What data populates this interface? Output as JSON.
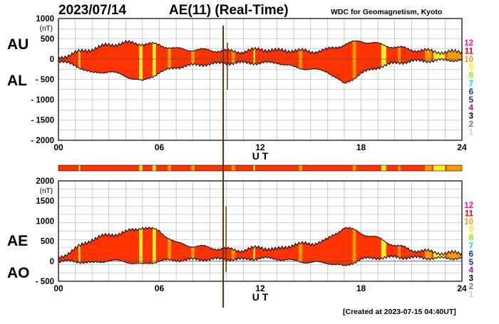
{
  "header": {
    "date": "2023/07/14",
    "title": "AE(11) (Real-Time)",
    "credit": "WDC for Geomagnetism, Kyoto"
  },
  "side_labels": {
    "au": "AU",
    "al": "AL",
    "ae": "AE",
    "ao": "AO"
  },
  "footer": {
    "created": "[Created at 2023-07-15 04:40UT]"
  },
  "legend": {
    "numbers": [
      "12",
      "11",
      "10",
      "9",
      "8",
      "7",
      "6",
      "5",
      "4",
      "3",
      "2",
      "1"
    ],
    "colors": [
      "#ff1493",
      "#ee0000",
      "#ff9900",
      "#ffee00",
      "#99ee00",
      "#00dddd",
      "#0033ff",
      "#2222aa",
      "#cc00cc",
      "#000000",
      "#777777",
      "#cccccc"
    ]
  },
  "colors": {
    "fill": "#ff3300",
    "fill_alt_orange": "#ff9900",
    "fill_alt_yellow": "#ffee22",
    "outline": "#000000",
    "spike": "#553300",
    "grid": "#aaaaaa"
  },
  "chart_data": [
    {
      "type": "area",
      "name": "AU and AL",
      "unit": "(nT)",
      "xlim": [
        0,
        24
      ],
      "ylim": [
        -2000,
        1000
      ],
      "yticks": [
        1000,
        500,
        0,
        -500,
        -1000,
        -1500,
        -2000
      ],
      "ytick_labels": [
        "1000",
        "500",
        "0",
        "- 500",
        "- 1000",
        "- 1500",
        "- 2000"
      ],
      "xticks": [
        0,
        6,
        12,
        18,
        24
      ],
      "xtick_labels": [
        "00",
        "06",
        "12",
        "18",
        "24"
      ],
      "xlabel": "U T",
      "series": [
        {
          "name": "AU",
          "x": [
            0,
            1,
            2,
            3,
            4,
            5,
            6,
            7,
            8,
            9,
            9.8,
            11,
            12,
            13,
            14,
            15,
            16,
            17,
            18,
            19,
            20,
            21,
            22,
            23,
            24
          ],
          "values": [
            30,
            150,
            250,
            350,
            400,
            380,
            350,
            250,
            230,
            220,
            200,
            180,
            250,
            200,
            220,
            180,
            230,
            360,
            450,
            370,
            300,
            230,
            200,
            170,
            180
          ]
        },
        {
          "name": "AL",
          "x": [
            0,
            1,
            2,
            3,
            4,
            5,
            6,
            7,
            8,
            9,
            9.8,
            11,
            12,
            13,
            14,
            15,
            16,
            17,
            18,
            19,
            20,
            21,
            22,
            23,
            24
          ],
          "values": [
            -50,
            -150,
            -350,
            -300,
            -420,
            -550,
            -330,
            -200,
            -150,
            -120,
            -100,
            -90,
            -100,
            -80,
            -200,
            -250,
            -300,
            -620,
            -350,
            -200,
            -100,
            -50,
            -40,
            -30,
            -20
          ]
        }
      ],
      "spike": {
        "x": 9.8,
        "high": 950,
        "low": -2000
      }
    },
    {
      "type": "area",
      "name": "AE and AO",
      "unit": "(nT)",
      "xlim": [
        0,
        24
      ],
      "ylim": [
        -500,
        2000
      ],
      "yticks": [
        2000,
        1500,
        1000,
        500,
        0,
        -500
      ],
      "ytick_labels": [
        "2000",
        "1500",
        "1000",
        "500",
        "0",
        "- 500"
      ],
      "xticks": [
        0,
        6,
        12,
        18,
        24
      ],
      "xtick_labels": [
        "00",
        "06",
        "12",
        "18",
        "24"
      ],
      "xlabel": "U T",
      "series": [
        {
          "name": "AE",
          "x": [
            0,
            1,
            2,
            3,
            4,
            5,
            6,
            7,
            8,
            9,
            9.8,
            11,
            12,
            13,
            14,
            15,
            16,
            17,
            18,
            19,
            20,
            21,
            22,
            23,
            24
          ],
          "values": [
            80,
            300,
            550,
            650,
            720,
            850,
            750,
            450,
            380,
            340,
            300,
            270,
            350,
            280,
            420,
            430,
            530,
            850,
            700,
            570,
            400,
            280,
            240,
            200,
            200
          ]
        },
        {
          "name": "AO",
          "x": [
            0,
            1,
            2,
            3,
            4,
            5,
            6,
            7,
            8,
            9,
            9.8,
            11,
            12,
            13,
            14,
            15,
            16,
            17,
            18,
            19,
            20,
            21,
            22,
            23,
            24
          ],
          "values": [
            -10,
            0,
            -50,
            25,
            -10,
            -85,
            10,
            25,
            40,
            50,
            50,
            45,
            75,
            60,
            10,
            -35,
            -35,
            -130,
            50,
            85,
            100,
            90,
            80,
            70,
            80
          ]
        }
      ],
      "spike": {
        "x": 9.8,
        "high": 1700,
        "low": -1200
      }
    }
  ]
}
